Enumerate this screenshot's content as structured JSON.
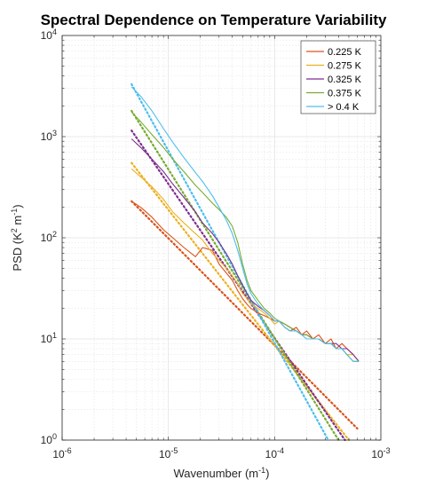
{
  "chart_data": {
    "type": "line",
    "title": "Spectral Dependence on Temperature Variability",
    "xlabel": {
      "text": "Wavenumber (m",
      "sup": "-1",
      "end": ")"
    },
    "ylabel": {
      "pre": "PSD (K",
      "sup1": "2",
      "mid": " m",
      "sup2": "-1",
      "end": ")"
    },
    "xscale": "log",
    "yscale": "log",
    "xlim": [
      1e-06,
      0.001
    ],
    "ylim": [
      1,
      10000
    ],
    "grid": true,
    "legend_position": "top-right",
    "x_ticks": [
      {
        "value": 1e-06,
        "base": "10",
        "exp": "-6"
      },
      {
        "value": 1e-05,
        "base": "10",
        "exp": "-5"
      },
      {
        "value": 0.0001,
        "base": "10",
        "exp": "-4"
      },
      {
        "value": 0.001,
        "base": "10",
        "exp": "-3"
      }
    ],
    "y_ticks": [
      {
        "value": 1,
        "base": "10",
        "exp": "0"
      },
      {
        "value": 10,
        "base": "10",
        "exp": "1"
      },
      {
        "value": 100,
        "base": "10",
        "exp": "2"
      },
      {
        "value": 1000,
        "base": "10",
        "exp": "3"
      },
      {
        "value": 10000,
        "base": "10",
        "exp": "4"
      }
    ],
    "series": [
      {
        "name": "0.225 K",
        "color": "#D95319",
        "x": [
          4.5e-06,
          5.5e-06,
          7e-06,
          9e-06,
          1.1e-05,
          1.4e-05,
          1.8e-05,
          2.1e-05,
          2.6e-05,
          3e-05,
          3.5e-05,
          4e-05,
          4.5e-05,
          5e-05,
          5.5e-05,
          6e-05,
          7e-05,
          8e-05,
          9e-05,
          0.0001,
          0.00011,
          0.000125,
          0.00014,
          0.00016,
          0.00018,
          0.0002,
          0.00023,
          0.00026,
          0.0003,
          0.00034,
          0.00038,
          0.00043,
          0.00048,
          0.00055,
          0.00062
        ],
        "y": [
          230,
          200,
          160,
          120,
          100,
          80,
          65,
          80,
          75,
          55,
          45,
          38,
          30,
          25,
          22,
          20,
          18,
          17,
          16,
          15,
          15,
          13,
          12,
          13,
          11,
          12,
          10,
          11,
          9,
          10,
          8,
          9,
          8,
          7,
          6
        ],
        "fit_x": [
          4.5e-06,
          0.0006
        ],
        "fit_y": [
          230,
          1.3
        ]
      },
      {
        "name": "0.275 K",
        "color": "#EDB120",
        "x": [
          4.5e-06,
          5.5e-06,
          7e-06,
          9e-06,
          1.1e-05,
          1.4e-05,
          1.8e-05,
          2.1e-05,
          2.6e-05,
          3e-05,
          3.5e-05,
          4e-05,
          4.5e-05,
          5e-05,
          5.5e-05,
          6e-05,
          7e-05,
          8e-05,
          9e-05,
          0.0001,
          0.00011,
          0.000125,
          0.00014,
          0.00016,
          0.00018,
          0.0002,
          0.00023,
          0.00026,
          0.0003,
          0.00034,
          0.00038,
          0.00043,
          0.00048,
          0.00055,
          0.00062
        ],
        "y": [
          480,
          400,
          320,
          240,
          180,
          140,
          110,
          95,
          70,
          60,
          50,
          42,
          35,
          28,
          25,
          22,
          20,
          18,
          16,
          14,
          15,
          13,
          12,
          12,
          11,
          11,
          10,
          10,
          9,
          9,
          8,
          8,
          7,
          7,
          6
        ],
        "fit_x": [
          4.5e-06,
          0.0005
        ],
        "fit_y": [
          550,
          1.0
        ]
      },
      {
        "name": "0.325 K",
        "color": "#7E2F8E",
        "x": [
          4.5e-06,
          5.5e-06,
          7e-06,
          9e-06,
          1.1e-05,
          1.4e-05,
          1.8e-05,
          2.1e-05,
          2.6e-05,
          3e-05,
          3.5e-05,
          4e-05,
          4.5e-05,
          5e-05,
          5.5e-05,
          6e-05,
          7e-05,
          8e-05,
          9e-05,
          0.0001,
          0.00011,
          0.000125,
          0.00014,
          0.00016,
          0.00018,
          0.0002,
          0.00023,
          0.00026,
          0.0003,
          0.00034,
          0.00038,
          0.00043,
          0.00048,
          0.00055,
          0.00062
        ],
        "y": [
          950,
          780,
          600,
          450,
          340,
          250,
          180,
          140,
          110,
          90,
          70,
          55,
          42,
          34,
          28,
          24,
          21,
          19,
          17,
          15,
          15,
          14,
          13,
          12,
          11,
          11,
          10,
          10,
          9,
          9,
          9,
          8,
          8,
          7,
          6
        ],
        "fit_x": [
          4.5e-06,
          0.00046
        ],
        "fit_y": [
          1150,
          1.0
        ]
      },
      {
        "name": "0.375 K",
        "color": "#77AC30",
        "x": [
          4.5e-06,
          5.5e-06,
          7e-06,
          9e-06,
          1.1e-05,
          1.4e-05,
          1.8e-05,
          2.1e-05,
          2.6e-05,
          3e-05,
          3.5e-05,
          4e-05,
          4.5e-05,
          5e-05,
          5.5e-05,
          6e-05,
          7e-05,
          8e-05,
          9e-05,
          0.0001,
          0.00011,
          0.000125,
          0.00014,
          0.00016,
          0.00018,
          0.0002,
          0.00023,
          0.00026,
          0.0003,
          0.00034,
          0.00038,
          0.00043,
          0.00048,
          0.00055,
          0.00062
        ],
        "y": [
          1750,
          1400,
          1050,
          780,
          600,
          450,
          330,
          280,
          220,
          190,
          160,
          130,
          90,
          55,
          38,
          30,
          24,
          20,
          18,
          16,
          15,
          14,
          13,
          12,
          11,
          11,
          10,
          10,
          9,
          9,
          8,
          8,
          7,
          6,
          6
        ],
        "fit_x": [
          4.5e-06,
          0.0004
        ],
        "fit_y": [
          1800,
          1.0
        ]
      },
      {
        "name": "> 0.4 K",
        "color": "#4DBEEE",
        "x": [
          4.5e-06,
          5.5e-06,
          7e-06,
          9e-06,
          1.1e-05,
          1.4e-05,
          1.8e-05,
          2.1e-05,
          2.6e-05,
          3e-05,
          3.5e-05,
          4e-05,
          4.5e-05,
          5e-05,
          5.5e-05,
          6e-05,
          7e-05,
          8e-05,
          9e-05,
          0.0001,
          0.00011,
          0.000125,
          0.00014,
          0.00016,
          0.00018,
          0.0002,
          0.00023,
          0.00026,
          0.0003,
          0.00034,
          0.00038,
          0.00043,
          0.00048,
          0.00055,
          0.00062
        ],
        "y": [
          3100,
          2500,
          1800,
          1200,
          880,
          620,
          440,
          360,
          260,
          200,
          150,
          110,
          75,
          50,
          35,
          28,
          22,
          19,
          17,
          15,
          15,
          13,
          12,
          12,
          11,
          10,
          10,
          10,
          9,
          9,
          8,
          8,
          7,
          6,
          6
        ],
        "fit_x": [
          4.5e-06,
          0.00032
        ],
        "fit_y": [
          3300,
          1.0
        ]
      }
    ]
  }
}
